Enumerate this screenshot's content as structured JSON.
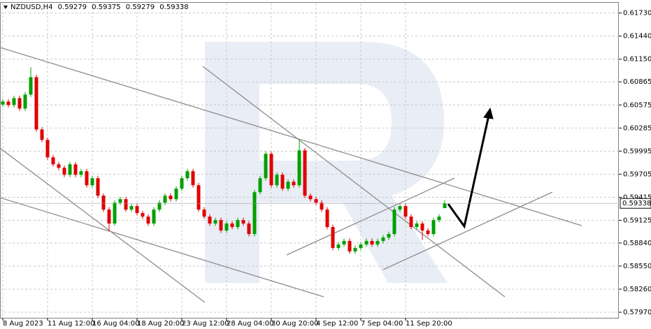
{
  "chart_data": {
    "type": "candlestick",
    "title": "NZDUSD,H4",
    "up_color": "#00a000",
    "down_color": "#e00000",
    "grid": true,
    "ylim": [
      0.579,
      0.6185
    ],
    "yticks": [
      {
        "value": 0.6173,
        "label": "0.61730"
      },
      {
        "value": 0.6144,
        "label": "0.61440"
      },
      {
        "value": 0.6115,
        "label": "0.61150"
      },
      0.60865,
      0.60575,
      0.60285,
      0.59995,
      0.59705,
      0.59415,
      0.59125,
      {
        "value": 0.5884,
        "label": "0.58840"
      },
      {
        "value": 0.5855,
        "label": "0.58550"
      },
      {
        "value": 0.5826,
        "label": "0.58260"
      },
      {
        "value": 0.5797,
        "label": "0.57970"
      }
    ],
    "categories": [
      "8 Aug 2023",
      null,
      null,
      null,
      null,
      null,
      null,
      null,
      "11 Aug 12:00",
      null,
      null,
      null,
      null,
      null,
      null,
      null,
      "16 Aug 04:00",
      null,
      null,
      null,
      null,
      null,
      null,
      null,
      "18 Aug 20:00",
      null,
      null,
      null,
      null,
      null,
      null,
      null,
      "23 Aug 12:00",
      null,
      null,
      null,
      null,
      null,
      null,
      null,
      "28 Aug 04:00",
      null,
      null,
      null,
      null,
      null,
      null,
      null,
      "30 Aug 20:00",
      null,
      null,
      null,
      null,
      null,
      null,
      null,
      "4 Sep 12:00",
      null,
      null,
      null,
      null,
      null,
      null,
      null,
      "7 Sep 04:00",
      null,
      null,
      null,
      null,
      null,
      null,
      null,
      "11 Sep 20:00",
      null,
      null,
      null,
      null,
      null,
      null,
      null
    ],
    "open": [
      0.6058,
      0.60618,
      0.60574,
      0.60661,
      0.6053,
      0.60705,
      0.60924,
      0.60267,
      0.60136,
      0.59917,
      0.59829,
      0.59785,
      0.59698,
      0.59829,
      0.59698,
      0.59742,
      0.59566,
      0.59654,
      0.59435,
      0.5926,
      0.59085,
      0.59347,
      0.59391,
      0.5926,
      0.59304,
      0.59216,
      0.59172,
      0.59085,
      0.5926,
      0.59347,
      0.59435,
      0.59391,
      0.59523,
      0.59654,
      0.59742,
      0.59566,
      0.5926,
      0.59172,
      0.59085,
      0.59128,
      0.58997,
      0.59085,
      0.59041,
      0.59128,
      0.59085,
      0.58953,
      0.59479,
      0.59654,
      0.59961,
      0.59566,
      0.59698,
      0.59523,
      0.5961,
      0.59566,
      0.60004,
      0.59435,
      0.59391,
      0.59347,
      0.5926,
      0.59041,
      0.58778,
      0.58822,
      0.58866,
      0.58734,
      0.58778,
      0.58822,
      0.58866,
      0.58822,
      0.58866,
      0.58909,
      0.58953,
      0.5926,
      0.59304,
      0.59172,
      0.59041,
      0.59085,
      0.58997,
      0.58953,
      0.59128,
      0.59279
    ],
    "high": [
      0.60648,
      0.60648,
      0.60691,
      0.60691,
      0.60735,
      0.6105,
      0.60954,
      0.60297,
      0.60166,
      0.59947,
      0.59859,
      0.59815,
      0.59859,
      0.59859,
      0.59772,
      0.59772,
      0.59684,
      0.59684,
      0.59465,
      0.5929,
      0.59377,
      0.59421,
      0.59421,
      0.59334,
      0.59334,
      0.59246,
      0.59202,
      0.5929,
      0.59377,
      0.59465,
      0.59465,
      0.59553,
      0.59684,
      0.59772,
      0.59772,
      0.59596,
      0.5929,
      0.59202,
      0.59158,
      0.59158,
      0.59115,
      0.59115,
      0.59158,
      0.59158,
      0.59115,
      0.59509,
      0.59684,
      0.59991,
      0.59991,
      0.59728,
      0.59728,
      0.5964,
      0.5964,
      0.6013,
      0.60034,
      0.59465,
      0.59421,
      0.59377,
      0.5929,
      0.59071,
      0.58852,
      0.58896,
      0.58896,
      0.58808,
      0.58852,
      0.58896,
      0.58896,
      0.58896,
      0.58939,
      0.58983,
      0.5929,
      0.59334,
      0.59334,
      0.59202,
      0.59115,
      0.59115,
      0.59027,
      0.59158,
      0.59202,
      0.59375
    ],
    "low": [
      0.6055,
      0.60544,
      0.60544,
      0.605,
      0.605,
      0.60675,
      0.60237,
      0.60106,
      0.59887,
      0.59799,
      0.59755,
      0.59668,
      0.59668,
      0.59668,
      0.59668,
      0.59536,
      0.59536,
      0.59405,
      0.5923,
      0.5899,
      0.59055,
      0.59317,
      0.5923,
      0.5923,
      0.59186,
      0.59142,
      0.59055,
      0.59055,
      0.5923,
      0.59317,
      0.59361,
      0.59361,
      0.59493,
      0.59624,
      0.59536,
      0.5923,
      0.59142,
      0.59055,
      0.59055,
      0.58967,
      0.58967,
      0.59011,
      0.59011,
      0.59055,
      0.58923,
      0.58923,
      0.59449,
      0.59624,
      0.59536,
      0.59536,
      0.59493,
      0.59493,
      0.59536,
      0.59536,
      0.59405,
      0.59361,
      0.59317,
      0.5923,
      0.59011,
      0.58748,
      0.58748,
      0.58792,
      0.58704,
      0.58704,
      0.58748,
      0.58792,
      0.58792,
      0.58792,
      0.58836,
      0.58879,
      0.58923,
      0.5923,
      0.59142,
      0.59011,
      0.59011,
      0.5888,
      0.58923,
      0.58923,
      0.59098,
      0.59279
    ],
    "close": [
      0.60618,
      0.60574,
      0.60661,
      0.6053,
      0.60705,
      0.60924,
      0.60267,
      0.60136,
      0.59917,
      0.59829,
      0.59785,
      0.59698,
      0.59829,
      0.59698,
      0.59742,
      0.59566,
      0.59654,
      0.59435,
      0.5926,
      0.59085,
      0.59347,
      0.59391,
      0.5926,
      0.59304,
      0.59216,
      0.59172,
      0.59085,
      0.5926,
      0.59347,
      0.59435,
      0.59391,
      0.59523,
      0.59654,
      0.59742,
      0.59566,
      0.5926,
      0.59172,
      0.59085,
      0.59128,
      0.58997,
      0.59085,
      0.59041,
      0.59128,
      0.59085,
      0.58953,
      0.59479,
      0.59654,
      0.59961,
      0.59566,
      0.59698,
      0.59523,
      0.5961,
      0.59566,
      0.60004,
      0.59435,
      0.59391,
      0.59347,
      0.5926,
      0.59041,
      0.58778,
      0.58822,
      0.58866,
      0.58734,
      0.58778,
      0.58822,
      0.58866,
      0.58822,
      0.58866,
      0.58909,
      0.58953,
      0.5926,
      0.59304,
      0.59172,
      0.59041,
      0.59085,
      0.58997,
      0.58953,
      0.59128,
      0.59172,
      0.59338
    ]
  }
}
